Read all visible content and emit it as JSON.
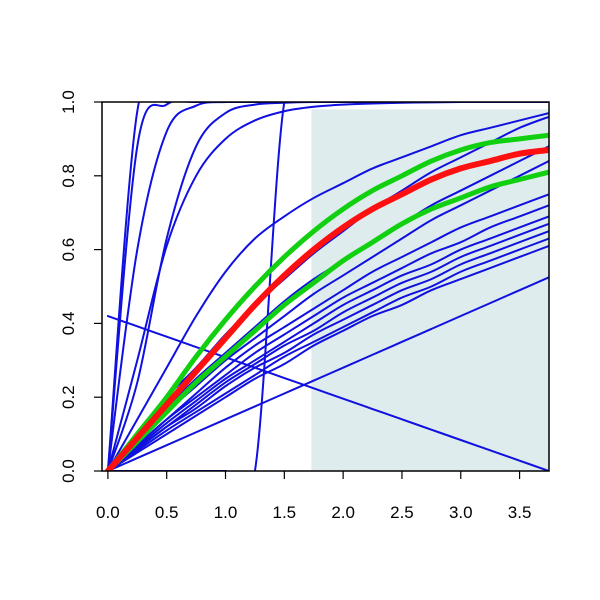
{
  "chart_data": {
    "type": "line",
    "title": "",
    "xlabel": "",
    "ylabel": "",
    "xlim": [
      -0.05,
      3.75
    ],
    "ylim": [
      0,
      1
    ],
    "grid": false,
    "x_ticks": [
      0.0,
      0.5,
      1.0,
      1.5,
      2.0,
      2.5,
      3.0,
      3.5
    ],
    "x_tick_labels": [
      "0.0",
      "0.5",
      "1.0",
      "1.5",
      "2.0",
      "2.5",
      "3.0",
      "3.5"
    ],
    "y_ticks": [
      0.0,
      0.2,
      0.4,
      0.6,
      0.8,
      1.0
    ],
    "y_tick_labels": [
      "0.0",
      "0.2",
      "0.4",
      "0.6",
      "0.8",
      "1.0"
    ],
    "shaded_region": {
      "x": [
        1.73,
        3.75
      ],
      "y": [
        0,
        0.98
      ],
      "color": "#deeced"
    },
    "colors": {
      "curves": "#1010e0",
      "highlight": "#ff1010",
      "bounds": "#10d010"
    },
    "x": [
      0,
      0.25,
      0.5,
      0.75,
      1.0,
      1.25,
      1.5,
      1.75,
      2.0,
      2.25,
      2.5,
      2.75,
      3.0,
      3.25,
      3.5,
      3.75
    ],
    "series": [
      {
        "role": "curve",
        "values": [
          0,
          0.975,
          0.9999,
          1,
          1,
          1,
          1,
          1,
          1,
          1,
          1,
          1,
          1,
          1,
          1,
          1
        ]
      },
      {
        "role": "curve",
        "values": [
          0,
          0.88,
          0.993,
          1,
          1,
          1,
          1,
          1,
          1,
          1,
          1,
          1,
          1,
          1,
          1,
          1
        ]
      },
      {
        "role": "curve",
        "values": [
          0,
          0.6,
          0.92,
          0.99,
          1,
          1,
          1,
          1,
          1,
          1,
          1,
          1,
          1,
          1,
          1,
          1
        ]
      },
      {
        "role": "curve",
        "values": [
          0,
          0.24,
          0.63,
          0.88,
          0.97,
          0.993,
          0.998,
          1,
          1,
          1,
          1,
          1,
          1,
          1,
          1,
          1
        ]
      },
      {
        "role": "curve",
        "values": [
          0,
          0.3,
          0.61,
          0.8,
          0.9,
          0.95,
          0.975,
          0.987,
          0.993,
          0.996,
          0.998,
          0.999,
          1,
          1,
          1,
          1
        ]
      },
      {
        "role": "curve",
        "values": [
          0,
          0.1,
          0.2,
          0.28,
          0.37,
          0.45,
          0.52,
          0.59,
          0.65,
          0.71,
          0.76,
          0.81,
          0.85,
          0.89,
          0.93,
          0.96
        ]
      },
      {
        "role": "curve",
        "values": [
          0,
          0.14,
          0.28,
          0.42,
          0.54,
          0.63,
          0.69,
          0.74,
          0.78,
          0.82,
          0.85,
          0.88,
          0.91,
          0.93,
          0.95,
          0.97
        ]
      },
      {
        "role": "curve",
        "values": [
          0,
          0.09,
          0.17,
          0.25,
          0.32,
          0.39,
          0.46,
          0.52,
          0.57,
          0.62,
          0.67,
          0.72,
          0.76,
          0.8,
          0.84,
          0.88
        ]
      },
      {
        "role": "curve",
        "values": [
          0,
          0.08,
          0.16,
          0.23,
          0.3,
          0.36,
          0.42,
          0.48,
          0.53,
          0.58,
          0.63,
          0.68,
          0.72,
          0.76,
          0.8,
          0.84
        ]
      },
      {
        "role": "curve",
        "values": [
          0,
          0.07,
          0.14,
          0.21,
          0.28,
          0.34,
          0.39,
          0.44,
          0.49,
          0.54,
          0.58,
          0.62,
          0.66,
          0.69,
          0.72,
          0.75
        ]
      },
      {
        "role": "curve",
        "values": [
          0,
          0.07,
          0.14,
          0.2,
          0.26,
          0.32,
          0.37,
          0.42,
          0.47,
          0.51,
          0.55,
          0.59,
          0.62,
          0.66,
          0.69,
          0.72
        ]
      },
      {
        "role": "curve",
        "values": [
          0,
          0.065,
          0.13,
          0.19,
          0.25,
          0.3,
          0.35,
          0.4,
          0.45,
          0.49,
          0.53,
          0.56,
          0.6,
          0.63,
          0.66,
          0.69
        ]
      },
      {
        "role": "curve",
        "values": [
          0,
          0.06,
          0.12,
          0.18,
          0.24,
          0.29,
          0.34,
          0.38,
          0.43,
          0.47,
          0.51,
          0.54,
          0.58,
          0.61,
          0.64,
          0.67
        ]
      },
      {
        "role": "curve",
        "values": [
          0,
          0.06,
          0.12,
          0.17,
          0.23,
          0.28,
          0.32,
          0.37,
          0.41,
          0.45,
          0.49,
          0.52,
          0.56,
          0.59,
          0.62,
          0.65
        ]
      },
      {
        "role": "curve",
        "values": [
          0,
          0.055,
          0.11,
          0.16,
          0.21,
          0.26,
          0.31,
          0.35,
          0.39,
          0.43,
          0.47,
          0.5,
          0.54,
          0.57,
          0.6,
          0.63
        ]
      },
      {
        "role": "curve",
        "values": [
          0,
          0.05,
          0.1,
          0.15,
          0.2,
          0.25,
          0.29,
          0.34,
          0.38,
          0.42,
          0.45,
          0.49,
          0.52,
          0.55,
          0.58,
          0.61
        ]
      },
      {
        "role": "curve",
        "values": [
          0,
          0.035,
          0.07,
          0.105,
          0.14,
          0.175,
          0.21,
          0.245,
          0.28,
          0.315,
          0.35,
          0.385,
          0.42,
          0.455,
          0.49,
          0.525
        ]
      },
      {
        "role": "curve",
        "values": [
          0.42,
          0.392,
          0.364,
          0.336,
          0.308,
          0.28,
          0.252,
          0.224,
          0.196,
          0.168,
          0.14,
          0.112,
          0.084,
          0.056,
          0.028,
          0
        ]
      },
      {
        "role": "curve",
        "values": [
          0,
          0,
          0,
          0,
          0,
          0,
          1,
          1,
          1,
          1,
          1,
          1,
          1,
          1,
          1,
          1
        ]
      },
      {
        "role": "bound",
        "values": [
          0,
          0.1,
          0.2,
          0.31,
          0.41,
          0.5,
          0.58,
          0.65,
          0.71,
          0.76,
          0.8,
          0.84,
          0.87,
          0.89,
          0.9,
          0.91
        ]
      },
      {
        "role": "highlight",
        "values": [
          0,
          0.09,
          0.18,
          0.27,
          0.36,
          0.45,
          0.53,
          0.6,
          0.66,
          0.71,
          0.75,
          0.79,
          0.82,
          0.84,
          0.86,
          0.87
        ]
      },
      {
        "role": "bound",
        "values": [
          0,
          0.08,
          0.16,
          0.24,
          0.31,
          0.38,
          0.45,
          0.51,
          0.57,
          0.62,
          0.67,
          0.71,
          0.74,
          0.77,
          0.79,
          0.81
        ]
      }
    ]
  }
}
